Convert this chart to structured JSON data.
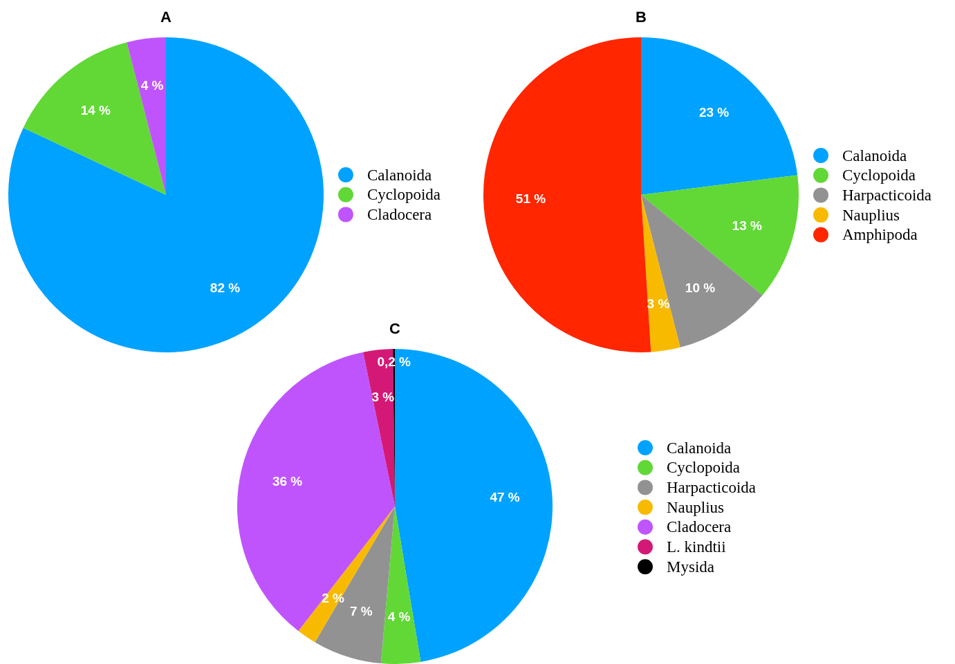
{
  "chart_data": [
    {
      "type": "pie",
      "title": "A",
      "categories": [
        "Calanoida",
        "Cyclopoida",
        "Cladocera"
      ],
      "values": [
        82,
        14,
        4
      ],
      "colors": [
        "#00a2ff",
        "#61d836",
        "#c054fc"
      ],
      "value_labels": [
        "82 %",
        "14 %",
        "4 %"
      ],
      "legend": "right"
    },
    {
      "type": "pie",
      "title": "B",
      "categories": [
        "Calanoida",
        "Cyclopoida",
        "Harpacticoida",
        "Nauplius",
        "Amphipoda"
      ],
      "values": [
        23,
        13,
        10,
        3,
        51
      ],
      "colors": [
        "#00a2ff",
        "#61d836",
        "#929292",
        "#f8ba00",
        "#ff2600"
      ],
      "value_labels": [
        "23 %",
        "13 %",
        "10 %",
        "3 %",
        "51 %"
      ],
      "legend": "right"
    },
    {
      "type": "pie",
      "title": "C",
      "categories": [
        "Calanoida",
        "Cyclopoida",
        "Harpacticoida",
        "Nauplius",
        "Cladocera",
        "L. kindtii",
        "Mysida"
      ],
      "values": [
        47,
        4,
        7,
        2,
        36,
        3,
        0.2
      ],
      "colors": [
        "#00a2ff",
        "#61d836",
        "#929292",
        "#f8ba00",
        "#c054fc",
        "#d41876",
        "#000000"
      ],
      "value_labels": [
        "47 %",
        "4 %",
        "7 %",
        "2 %",
        "36 %",
        "3 %",
        "0,2 %"
      ],
      "legend": "right"
    }
  ]
}
